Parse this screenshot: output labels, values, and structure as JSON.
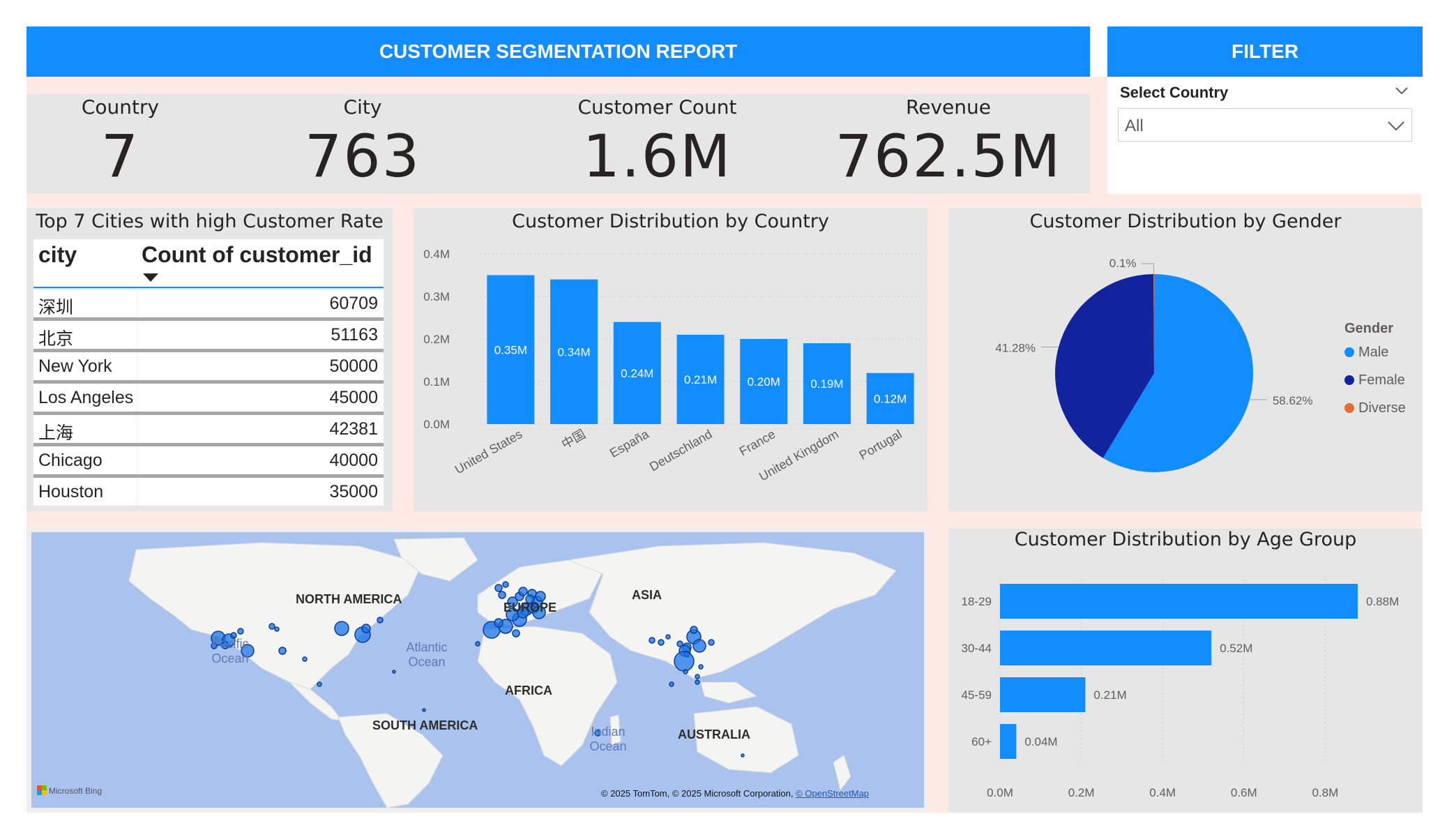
{
  "header": {
    "title": "CUSTOMER SEGMENTATION REPORT",
    "filter_title": "FILTER"
  },
  "filter": {
    "label": "Select Country",
    "value": "All"
  },
  "kpis": [
    {
      "label": "Country",
      "value": "7"
    },
    {
      "label": "City",
      "value": "763"
    },
    {
      "label": "Customer Count",
      "value": "1.6M"
    },
    {
      "label": "Revenue",
      "value": "762.5M"
    }
  ],
  "cities_table": {
    "title": "Top 7 Cities with high Customer Rate",
    "col_city": "city",
    "col_count": "Count of customer_id",
    "rows": [
      {
        "city": "深圳",
        "count": "60709"
      },
      {
        "city": "北京",
        "count": "51163"
      },
      {
        "city": "New York",
        "count": "50000"
      },
      {
        "city": "Los Angeles",
        "count": "45000"
      },
      {
        "city": "上海",
        "count": "42381"
      },
      {
        "city": "Chicago",
        "count": "40000"
      },
      {
        "city": "Houston",
        "count": "35000"
      }
    ]
  },
  "country_chart": {
    "title": "Customer Distribution by Country"
  },
  "gender_chart": {
    "title": "Customer Distribution by Gender"
  },
  "age_chart": {
    "title": "Customer Distribution by Age Group"
  },
  "map": {
    "continents": [
      "NORTH AMERICA",
      "EUROPE",
      "ASIA",
      "AFRICA",
      "SOUTH AMERICA",
      "AUSTRALIA"
    ],
    "oceans": [
      "Pacific Ocean",
      "Atlantic Ocean",
      "Indian Ocean"
    ],
    "attribution": "© 2025 TomTom, © 2025 Microsoft Corporation,",
    "attribution_link": "© OpenStreetMap",
    "brand": "Microsoft Bing"
  },
  "colors": {
    "accent": "#118dff",
    "female": "#12239e",
    "diverse": "#e66c37",
    "panel": "#e6e6e6",
    "page_bg": "#fdeae5"
  },
  "chart_data": [
    {
      "type": "bar",
      "title": "Customer Distribution by Country",
      "categories": [
        "United States",
        "中国",
        "España",
        "Deutschland",
        "France",
        "United Kingdom",
        "Portugal"
      ],
      "values": [
        0.35,
        0.34,
        0.24,
        0.21,
        0.2,
        0.19,
        0.12
      ],
      "data_labels": [
        "0.35M",
        "0.34M",
        "0.24M",
        "0.21M",
        "0.20M",
        "0.19M",
        "0.12M"
      ],
      "y_ticks": [
        "0.0M",
        "0.1M",
        "0.2M",
        "0.3M",
        "0.4M"
      ],
      "ylim": [
        0,
        0.4
      ],
      "unit": "M",
      "grid": true
    },
    {
      "type": "pie",
      "title": "Customer Distribution by Gender",
      "legend_title": "Gender",
      "legend_position": "right",
      "categories": [
        "Male",
        "Female",
        "Diverse"
      ],
      "values": [
        58.62,
        41.28,
        0.1
      ],
      "data_labels": [
        "58.62%",
        "41.28%",
        "0.1%"
      ],
      "colors": [
        "#118dff",
        "#12239e",
        "#e66c37"
      ]
    },
    {
      "type": "bar",
      "orientation": "horizontal",
      "title": "Customer Distribution by Age Group",
      "categories": [
        "18-29",
        "30-44",
        "45-59",
        "60+"
      ],
      "values": [
        0.88,
        0.52,
        0.21,
        0.04
      ],
      "data_labels": [
        "0.88M",
        "0.52M",
        "0.21M",
        "0.04M"
      ],
      "x_ticks": [
        "0.0M",
        "0.2M",
        "0.4M",
        "0.6M",
        "0.8M"
      ],
      "xlim": [
        0,
        0.88
      ],
      "unit": "M",
      "grid": true
    }
  ]
}
